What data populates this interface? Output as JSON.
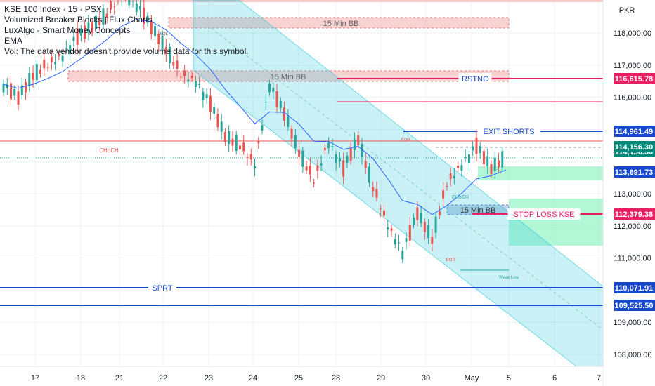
{
  "legend": {
    "title": "KSE 100 Index · 15 · PSX",
    "lines": [
      "Volumized Breaker Blocks | Flux Charts",
      "LuxAlgo - Smart Money Concepts",
      "EMA",
      "Vol: The data vendor doesn't provide volume data for this symbol."
    ]
  },
  "chart_data": {
    "type": "candlestick",
    "currency": "PKR",
    "y_range": [
      107500,
      119500
    ],
    "y_ticks": [
      {
        "value": 118000,
        "label": "118,000.00"
      },
      {
        "value": 117000,
        "label": "117,000.00"
      },
      {
        "value": 116000,
        "label": "116,000.00"
      },
      {
        "value": 113000,
        "label": "113,000.00"
      },
      {
        "value": 112000,
        "label": "112,000.00"
      },
      {
        "value": 111000,
        "label": "111,000.00"
      },
      {
        "value": 109000,
        "label": "109,000.00"
      },
      {
        "value": 108000,
        "label": "108,000.00"
      }
    ],
    "x_ticks": [
      "17",
      "18",
      "21",
      "22",
      "23",
      "24",
      "25",
      "28",
      "29",
      "30",
      "May",
      "5",
      "6",
      "7"
    ],
    "price_labels": [
      {
        "value": 116615.78,
        "label": "116,615.78",
        "color": "#e91e63"
      },
      {
        "value": 114961.49,
        "label": "114,961.49",
        "color": "#1848cc"
      },
      {
        "value": 114156.3,
        "label": "114,156.30",
        "color": "#00897b"
      },
      {
        "value": 113691.73,
        "label": "113,691.73",
        "color": "#1848cc"
      },
      {
        "value": 112379.38,
        "label": "112,379.38",
        "color": "#e91e63"
      },
      {
        "value": 110071.91,
        "label": "110,071.91",
        "color": "#1848cc"
      },
      {
        "value": 109525.5,
        "label": "109,525.50",
        "color": "#1848cc"
      }
    ],
    "annotations": {
      "rstnc": "RSTNC",
      "exit_shorts": "EXIT SHORTS",
      "stop_loss": "STOP LOSS KSE",
      "sprt": "SPRT",
      "bb1": "15 Min BB",
      "bb2": "15 Min BB",
      "bb3": "15 Min BB",
      "choch1": "CHoCH",
      "choch2": "CHoCH",
      "eql": "EQL",
      "eqh": "EQH",
      "bos": "BOS",
      "weak_low": "Weak Low"
    },
    "key_prices": [
      {
        "name": "RSTNC",
        "value": 116615.78
      },
      {
        "name": "EXIT SHORTS",
        "value": 114961.49
      },
      {
        "name": "last",
        "value": 114156.3
      },
      {
        "name": "EMA",
        "value": 113691.73
      },
      {
        "name": "STOP LOSS KSE",
        "value": 112379.38
      },
      {
        "name": "SPRT",
        "value": 110071.91
      },
      {
        "name": "support2",
        "value": 109525.5
      }
    ],
    "path_points": [
      [
        116550,
        116400,
        116800,
        116300
      ],
      [
        116300,
        116000,
        116600,
        115850
      ],
      [
        116200,
        116700,
        116900,
        116050
      ],
      [
        116700,
        117000,
        117200,
        116500
      ],
      [
        117000,
        117300,
        117500,
        116800
      ],
      [
        117300,
        117900,
        118000,
        117200
      ],
      [
        117900,
        118200,
        118400,
        117700
      ],
      [
        118200,
        118600,
        118900,
        118000
      ],
      [
        118600,
        119200,
        119400,
        118400
      ],
      [
        119200,
        118900,
        119300,
        118500
      ],
      [
        118900,
        118200,
        119000,
        118000
      ],
      [
        118200,
        117500,
        118300,
        117300
      ],
      [
        117500,
        116700,
        117600,
        116500
      ],
      [
        116700,
        116500,
        116700,
        114800
      ],
      [
        116500,
        115800,
        116600,
        115600
      ],
      [
        115800,
        114800,
        116000,
        114500
      ],
      [
        114800,
        114500,
        115500,
        114400
      ],
      [
        114500,
        113900,
        114700,
        113800
      ],
      [
        113900,
        116400,
        116600,
        113700
      ],
      [
        116400,
        115500,
        116700,
        115300
      ],
      [
        115500,
        114300,
        115600,
        113700
      ],
      [
        114300,
        113400,
        114500,
        113300
      ],
      [
        113400,
        114600,
        114700,
        113100
      ],
      [
        114600,
        113800,
        114800,
        113700
      ],
      [
        113800,
        114700,
        114900,
        113600
      ],
      [
        114700,
        113200,
        114800,
        112800
      ],
      [
        113200,
        112000,
        113300,
        111600
      ],
      [
        112000,
        111200,
        112100,
        111000
      ],
      [
        111200,
        112400,
        112600,
        110700
      ],
      [
        112400,
        111600,
        112500,
        111500
      ],
      [
        111600,
        113300,
        113400,
        111400
      ],
      [
        113300,
        113900,
        114300,
        113200
      ],
      [
        113900,
        114500,
        114700,
        113700
      ],
      [
        114500,
        113800,
        114600,
        113600
      ],
      [
        113800,
        114150,
        114400,
        113700
      ]
    ]
  }
}
